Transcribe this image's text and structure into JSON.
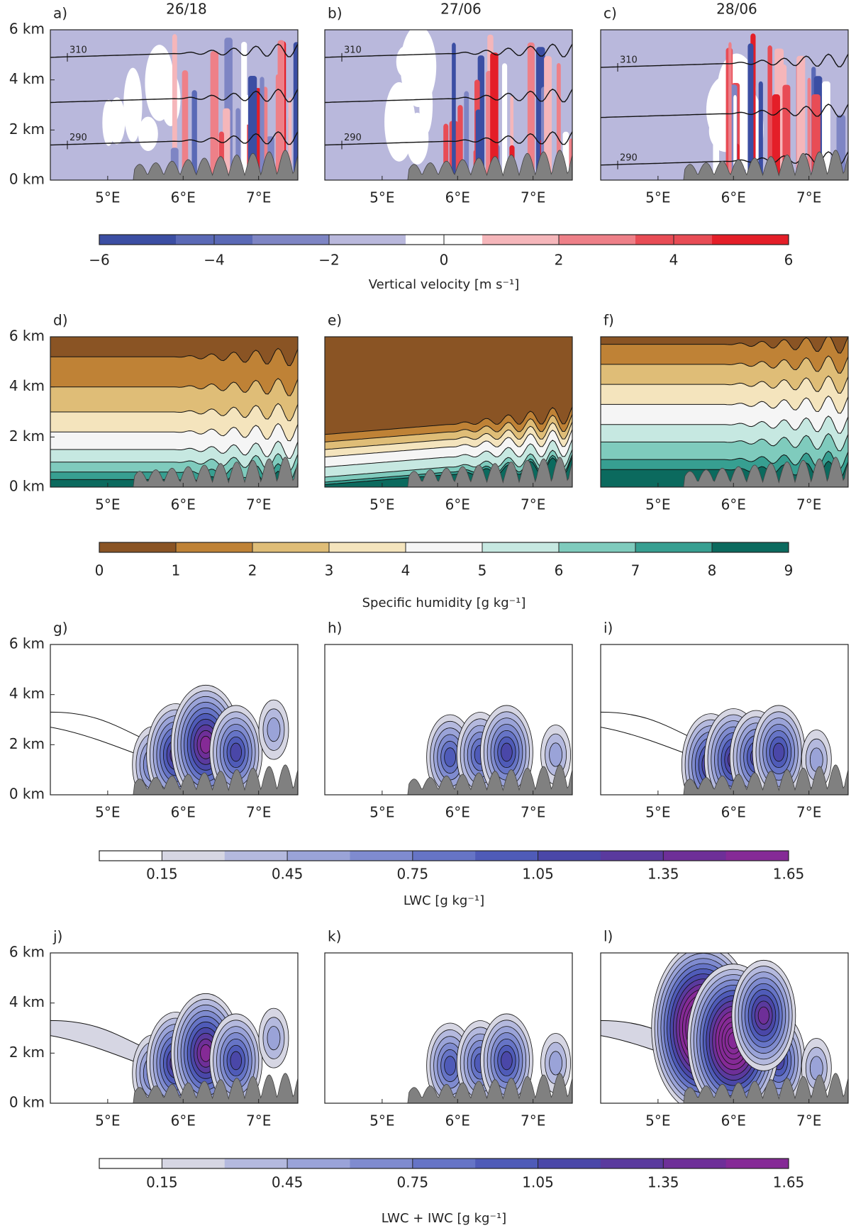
{
  "chart_data": [
    {
      "type": "contour",
      "label": "a)",
      "title": "26/18",
      "xlim": [
        4.24,
        7.52
      ],
      "ylim": [
        0,
        6
      ],
      "xticks": [
        {
          "value": 5,
          "label": "5°E"
        },
        {
          "value": 6,
          "label": "6°E"
        },
        {
          "value": 7,
          "label": "7°E"
        }
      ],
      "yticks": [
        {
          "value": 0,
          "label": "0 km"
        },
        {
          "value": 2,
          "label": "2 km"
        },
        {
          "value": 4,
          "label": "4 km"
        },
        {
          "value": 6,
          "label": "6 km"
        }
      ],
      "annotations": [
        "310",
        "290"
      ]
    },
    {
      "type": "contour",
      "label": "b)",
      "title": "27/06",
      "xlim": [
        4.24,
        7.52
      ],
      "ylim": [
        0,
        6
      ],
      "xticks": [
        {
          "value": 5,
          "label": "5°E"
        },
        {
          "value": 6,
          "label": "6°E"
        },
        {
          "value": 7,
          "label": "7°E"
        }
      ],
      "annotations": [
        "310",
        "290"
      ]
    },
    {
      "type": "contour",
      "label": "c)",
      "title": "28/06",
      "xlim": [
        4.24,
        7.52
      ],
      "ylim": [
        0,
        6
      ],
      "xticks": [
        {
          "value": 5,
          "label": "5°E"
        },
        {
          "value": 6,
          "label": "6°E"
        },
        {
          "value": 7,
          "label": "7°E"
        }
      ],
      "annotations": [
        "310",
        "290"
      ]
    },
    {
      "type": "contour",
      "label": "d)",
      "xlim": [
        4.24,
        7.52
      ],
      "ylim": [
        0,
        6
      ],
      "xticks": [
        {
          "value": 5,
          "label": "5°E"
        },
        {
          "value": 6,
          "label": "6°E"
        },
        {
          "value": 7,
          "label": "7°E"
        }
      ],
      "yticks": [
        {
          "value": 0,
          "label": "0 km"
        },
        {
          "value": 2,
          "label": "2 km"
        },
        {
          "value": 4,
          "label": "4 km"
        },
        {
          "value": 6,
          "label": "6 km"
        }
      ]
    },
    {
      "type": "contour",
      "label": "e)",
      "xlim": [
        4.24,
        7.52
      ],
      "ylim": [
        0,
        6
      ],
      "xticks": [
        {
          "value": 5,
          "label": "5°E"
        },
        {
          "value": 6,
          "label": "6°E"
        },
        {
          "value": 7,
          "label": "7°E"
        }
      ]
    },
    {
      "type": "contour",
      "label": "f)",
      "xlim": [
        4.24,
        7.52
      ],
      "ylim": [
        0,
        6
      ],
      "xticks": [
        {
          "value": 5,
          "label": "5°E"
        },
        {
          "value": 6,
          "label": "6°E"
        },
        {
          "value": 7,
          "label": "7°E"
        }
      ]
    },
    {
      "type": "contour",
      "label": "g)",
      "xlim": [
        4.24,
        7.52
      ],
      "ylim": [
        0,
        6
      ],
      "xticks": [
        {
          "value": 5,
          "label": "5°E"
        },
        {
          "value": 6,
          "label": "6°E"
        },
        {
          "value": 7,
          "label": "7°E"
        }
      ],
      "yticks": [
        {
          "value": 0,
          "label": "0 km"
        },
        {
          "value": 2,
          "label": "2 km"
        },
        {
          "value": 4,
          "label": "4 km"
        },
        {
          "value": 6,
          "label": "6 km"
        }
      ]
    },
    {
      "type": "contour",
      "label": "h)",
      "xlim": [
        4.24,
        7.52
      ],
      "ylim": [
        0,
        6
      ],
      "xticks": [
        {
          "value": 5,
          "label": "5°E"
        },
        {
          "value": 6,
          "label": "6°E"
        },
        {
          "value": 7,
          "label": "7°E"
        }
      ]
    },
    {
      "type": "contour",
      "label": "i)",
      "xlim": [
        4.24,
        7.52
      ],
      "ylim": [
        0,
        6
      ],
      "xticks": [
        {
          "value": 5,
          "label": "5°E"
        },
        {
          "value": 6,
          "label": "6°E"
        },
        {
          "value": 7,
          "label": "7°E"
        }
      ]
    },
    {
      "type": "contour",
      "label": "j)",
      "xlim": [
        4.24,
        7.52
      ],
      "ylim": [
        0,
        6
      ],
      "xticks": [
        {
          "value": 5,
          "label": "5°E"
        },
        {
          "value": 6,
          "label": "6°E"
        },
        {
          "value": 7,
          "label": "7°E"
        }
      ],
      "yticks": [
        {
          "value": 0,
          "label": "0 km"
        },
        {
          "value": 2,
          "label": "2 km"
        },
        {
          "value": 4,
          "label": "4 km"
        },
        {
          "value": 6,
          "label": "6 km"
        }
      ]
    },
    {
      "type": "contour",
      "label": "k)",
      "xlim": [
        4.24,
        7.52
      ],
      "ylim": [
        0,
        6
      ],
      "xticks": [
        {
          "value": 5,
          "label": "5°E"
        },
        {
          "value": 6,
          "label": "6°E"
        },
        {
          "value": 7,
          "label": "7°E"
        }
      ]
    },
    {
      "type": "contour",
      "label": "l)",
      "xlim": [
        4.24,
        7.52
      ],
      "ylim": [
        0,
        6
      ],
      "xticks": [
        {
          "value": 5,
          "label": "5°E"
        },
        {
          "value": 6,
          "label": "6°E"
        },
        {
          "value": 7,
          "label": "7°E"
        }
      ]
    },
    {
      "type": "colorbar",
      "title": "Vertical velocity [m s⁻¹]",
      "xlim": [
        -6,
        6
      ],
      "xticks": [
        {
          "value": -6,
          "label": "−6"
        },
        {
          "value": -4,
          "label": "−4"
        },
        {
          "value": -2,
          "label": "−2"
        },
        0,
        2,
        4,
        6
      ],
      "colors": [
        "#3b4ea3",
        "#5a69b6",
        "#7e85c4",
        "#b9b8dc",
        "#ffffff",
        "#f5b6ba",
        "#ee8088",
        "#e84c55",
        "#e41e28"
      ]
    },
    {
      "type": "colorbar",
      "title": "Specific humidity [g kg⁻¹]",
      "xlim": [
        0,
        9
      ],
      "xticks": [
        0,
        1,
        2,
        3,
        4,
        5,
        6,
        7,
        8,
        9
      ],
      "colors": [
        "#8a5424",
        "#bf8236",
        "#dfbd77",
        "#f4e4bd",
        "#f5f5f5",
        "#c6e8e1",
        "#7fcbbd",
        "#379f91",
        "#0b6a5e"
      ]
    },
    {
      "type": "colorbar",
      "title": "LWC [g kg⁻¹]",
      "xlim": [
        0,
        1.65
      ],
      "xticks": [
        0.15,
        0.45,
        0.75,
        1.05,
        1.35,
        1.65
      ],
      "colors": [
        "#ffffff",
        "#d6d6e3",
        "#b4b9de",
        "#9aa3d8",
        "#7f8bcf",
        "#6674c6",
        "#4f5bb8",
        "#4a47a8",
        "#5a3a9e",
        "#6e2f98",
        "#852a96"
      ]
    },
    {
      "type": "colorbar",
      "title": "LWC + IWC [g kg⁻¹]",
      "xlim": [
        0,
        1.65
      ],
      "xticks": [
        0.15,
        0.45,
        0.75,
        1.05,
        1.35,
        1.65
      ],
      "colors": [
        "#ffffff",
        "#d6d6e3",
        "#b4b9de",
        "#9aa3d8",
        "#7f8bcf",
        "#6674c6",
        "#4f5bb8",
        "#4a47a8",
        "#5a3a9e",
        "#6e2f98",
        "#852a96"
      ]
    }
  ]
}
